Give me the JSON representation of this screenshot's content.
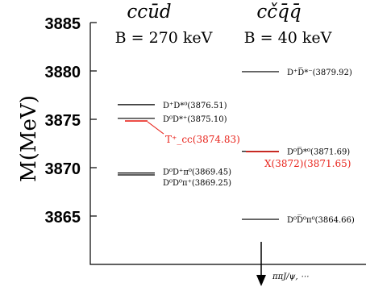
{
  "columns": {
    "left": {
      "header": "ccūd",
      "binding": "B = 270 keV"
    },
    "right": {
      "header": "cčq̄q̄",
      "binding": "B = 40 keV"
    }
  },
  "axis": {
    "label": "M(MeV)",
    "range": [
      3861.2,
      3885.2
    ],
    "ticks": [
      {
        "value": 3885,
        "label": "3885"
      },
      {
        "value": 3880,
        "label": "3880"
      },
      {
        "value": 3875,
        "label": "3875"
      },
      {
        "value": 3870,
        "label": "3870"
      },
      {
        "value": 3865,
        "label": "3865"
      }
    ]
  },
  "levels": [
    {
      "column": "left",
      "mass": 3876.51,
      "label": "D⁺D*⁰(3876.51)",
      "color": "#000000"
    },
    {
      "column": "left",
      "mass": 3875.1,
      "label": "D⁰D*⁺(3875.10)",
      "color": "#000000"
    },
    {
      "column": "left",
      "mass": 3869.45,
      "label": "D⁰D⁺π⁰(3869.45)",
      "color": "#000000"
    },
    {
      "column": "left",
      "mass": 3869.25,
      "label": "D⁰D⁰π⁺(3869.25)",
      "color": "#000000"
    },
    {
      "column": "right",
      "mass": 3879.92,
      "label": "D⁺D̅*⁻(3879.92)",
      "color": "#000000"
    },
    {
      "column": "right",
      "mass": 3871.69,
      "label": "D⁰D̅*⁰(3871.69)",
      "color": "#000000"
    },
    {
      "column": "right",
      "mass": 3864.66,
      "label": "D⁰D̅⁰π⁰(3864.66)",
      "color": "#000000"
    }
  ],
  "states": [
    {
      "column": "left",
      "mass": 3874.83,
      "label": "T⁺_cc(3874.83)",
      "color": "#e8241c"
    },
    {
      "column": "right",
      "mass": 3871.65,
      "label": "X(3872)(3871.65)",
      "color": "#e8241c"
    }
  ],
  "decay": {
    "label": "ππJ/ψ, ⋯"
  }
}
